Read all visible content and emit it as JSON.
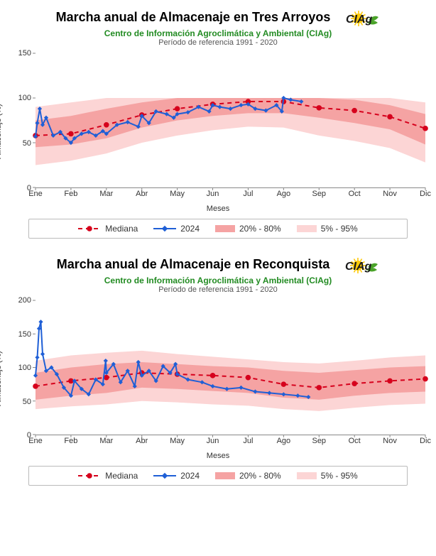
{
  "shared": {
    "subtitle": "Centro de Información Agroclimática y Ambiental (CIAg)",
    "period": "Período de referencia 1991 - 2020",
    "xlabel": "Meses",
    "ylabel": "Almacenaje (%)",
    "months": [
      "Ene",
      "Feb",
      "Mar",
      "Abr",
      "May",
      "Jun",
      "Jul",
      "Ago",
      "Sep",
      "Oct",
      "Nov",
      "Dic"
    ],
    "legend": {
      "median": "Mediana",
      "current": "2024",
      "band1": "20% - 80%",
      "band2": "5% - 95%"
    },
    "colors": {
      "median_line": "#d6001c",
      "median_marker": "#d6001c",
      "current_line": "#1f5fd6",
      "band1": "#f5a3a3",
      "band2": "#fcd5d5",
      "subtitle": "#228b22",
      "axis": "#888888",
      "text": "#333333",
      "legend_border": "#bbbbbb",
      "background": "#ffffff"
    },
    "styles": {
      "title_fontsize": 18,
      "subtitle_fontsize": 12,
      "tick_fontsize": 11,
      "legend_fontsize": 12,
      "median_dash": "6,5",
      "median_marker_r": 3.8,
      "current_linewidth": 2,
      "median_linewidth": 2
    },
    "logo": {
      "text": "CIAg",
      "sun_color": "#ffca08",
      "leaf_color": "#4aa329",
      "text_color": "#1a1a1a"
    }
  },
  "charts": [
    {
      "title": "Marcha anual de Almacenaje en Tres Arroyos",
      "ylim": [
        0,
        150
      ],
      "yticks": [
        0,
        50,
        100,
        150
      ],
      "median": [
        58,
        60,
        70,
        81,
        88,
        93,
        96,
        96,
        89,
        86,
        79,
        66
      ],
      "band1_lo": [
        45,
        48,
        55,
        67,
        75,
        80,
        83,
        83,
        78,
        72,
        65,
        48
      ],
      "band1_hi": [
        75,
        80,
        88,
        95,
        100,
        100,
        100,
        100,
        100,
        98,
        92,
        82
      ],
      "band2_lo": [
        25,
        30,
        38,
        50,
        58,
        64,
        68,
        67,
        58,
        52,
        44,
        28
      ],
      "band2_hi": [
        90,
        95,
        100,
        100,
        100,
        100,
        100,
        100,
        100,
        100,
        100,
        95
      ],
      "current_x": [
        0,
        0.05,
        0.12,
        0.2,
        0.3,
        0.5,
        0.7,
        0.85,
        1.0,
        1.1,
        1.3,
        1.5,
        1.7,
        1.9,
        2.0,
        2.3,
        2.6,
        2.9,
        3.0,
        3.2,
        3.4,
        3.7,
        3.9,
        4.0,
        4.3,
        4.6,
        4.9,
        5.0,
        5.2,
        5.5,
        5.8,
        6.0,
        6.2,
        6.5,
        6.8,
        6.95,
        7.0,
        7.2,
        7.5
      ],
      "current_y": [
        57,
        72,
        88,
        70,
        78,
        58,
        62,
        55,
        50,
        55,
        60,
        62,
        58,
        63,
        60,
        70,
        73,
        68,
        80,
        72,
        85,
        82,
        78,
        82,
        84,
        90,
        85,
        92,
        90,
        88,
        92,
        93,
        88,
        86,
        92,
        85,
        100,
        98,
        96
      ]
    },
    {
      "title": "Marcha anual de Almacenaje en Reconquista",
      "ylim": [
        0,
        200
      ],
      "yticks": [
        0,
        50,
        100,
        150,
        200
      ],
      "median": [
        72,
        80,
        85,
        92,
        90,
        88,
        85,
        75,
        70,
        76,
        80,
        83
      ],
      "band1_lo": [
        52,
        58,
        62,
        70,
        68,
        65,
        62,
        55,
        52,
        58,
        62,
        64
      ],
      "band1_hi": [
        92,
        100,
        105,
        108,
        105,
        102,
        100,
        95,
        92,
        96,
        100,
        102
      ],
      "band2_lo": [
        38,
        42,
        45,
        50,
        48,
        45,
        43,
        38,
        35,
        40,
        44,
        46
      ],
      "band2_hi": [
        110,
        118,
        122,
        125,
        120,
        116,
        112,
        108,
        106,
        110,
        115,
        118
      ],
      "current_x": [
        0,
        0.05,
        0.1,
        0.15,
        0.2,
        0.3,
        0.45,
        0.6,
        0.8,
        1.0,
        1.1,
        1.3,
        1.5,
        1.7,
        1.9,
        1.98,
        2.0,
        2.2,
        2.4,
        2.6,
        2.8,
        2.9,
        3.0,
        3.2,
        3.4,
        3.6,
        3.8,
        3.95,
        4.0,
        4.3,
        4.7,
        5.0,
        5.4,
        5.8,
        6.2,
        6.6,
        7.0,
        7.4,
        7.7
      ],
      "current_y": [
        88,
        115,
        158,
        168,
        120,
        95,
        100,
        90,
        70,
        58,
        80,
        68,
        60,
        82,
        75,
        110,
        92,
        105,
        78,
        95,
        72,
        108,
        88,
        95,
        80,
        102,
        92,
        105,
        90,
        82,
        78,
        72,
        68,
        70,
        64,
        62,
        60,
        58,
        56
      ]
    }
  ]
}
